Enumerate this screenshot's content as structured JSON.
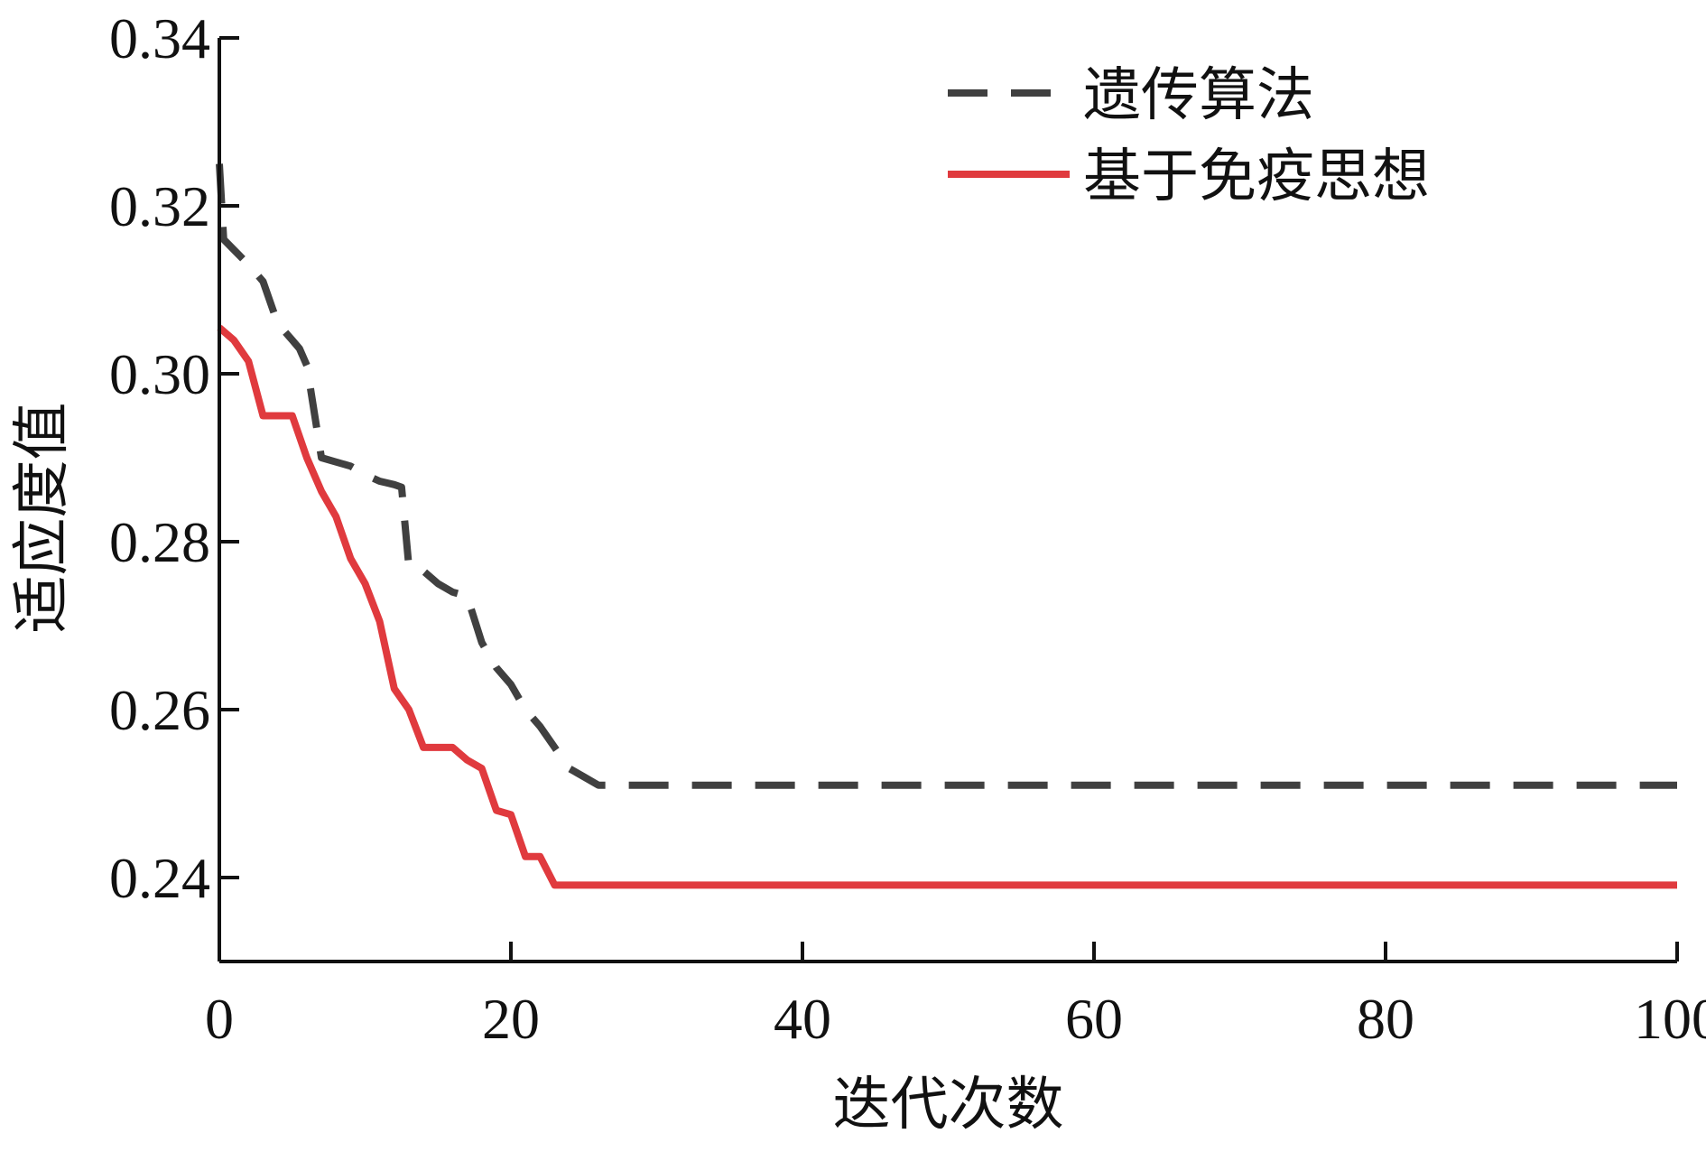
{
  "chart_data": {
    "type": "line",
    "xlabel": "迭代次数",
    "ylabel": "适应度值",
    "xlim": [
      0,
      100
    ],
    "ylim": [
      0.23,
      0.34
    ],
    "xticks": [
      0,
      20,
      40,
      60,
      80,
      100
    ],
    "xtick_labels": [
      "0",
      "20",
      "40",
      "60",
      "80",
      "100"
    ],
    "yticks": [
      0.24,
      0.26,
      0.28,
      0.3,
      0.32,
      0.34
    ],
    "ytick_labels": [
      "0.24",
      "0.26",
      "0.28",
      "0.30",
      "0.32",
      "0.34"
    ],
    "grid": false,
    "legend_position": "top-right",
    "series": [
      {
        "name": "遗传算法",
        "color": "#404040",
        "style": "dashed",
        "x": [
          0,
          0.3,
          2,
          3,
          4,
          4.5,
          5,
          5.5,
          6,
          7,
          8,
          9,
          10,
          11,
          11.5,
          12,
          12.5,
          13,
          14,
          15,
          16,
          17,
          18,
          19,
          20,
          21,
          22,
          23,
          24,
          25,
          26,
          27,
          30,
          40,
          50,
          60,
          70,
          80,
          90,
          100
        ],
        "y": [
          0.325,
          0.316,
          0.313,
          0.311,
          0.306,
          0.305,
          0.304,
          0.303,
          0.301,
          0.29,
          0.2895,
          0.289,
          0.288,
          0.2872,
          0.287,
          0.2868,
          0.2865,
          0.277,
          0.2765,
          0.275,
          0.274,
          0.2735,
          0.268,
          0.265,
          0.263,
          0.26,
          0.258,
          0.2555,
          0.253,
          0.252,
          0.251,
          0.251,
          0.251,
          0.251,
          0.251,
          0.251,
          0.251,
          0.251,
          0.251,
          0.251
        ]
      },
      {
        "name": "基于免疫思想",
        "color": "#e03a3e",
        "style": "solid",
        "x": [
          0,
          1,
          2,
          3,
          4,
          5,
          6,
          7,
          8,
          9,
          10,
          11,
          12,
          13,
          14,
          15,
          16,
          17,
          18,
          19,
          20,
          21,
          22,
          23,
          24,
          30,
          40,
          50,
          60,
          70,
          80,
          90,
          100
        ],
        "y": [
          0.3055,
          0.304,
          0.3015,
          0.295,
          0.295,
          0.295,
          0.29,
          0.286,
          0.283,
          0.278,
          0.275,
          0.2705,
          0.2625,
          0.26,
          0.2555,
          0.2555,
          0.2555,
          0.254,
          0.253,
          0.248,
          0.2475,
          0.2425,
          0.2425,
          0.2391,
          0.2391,
          0.2391,
          0.2391,
          0.2391,
          0.2391,
          0.2391,
          0.2391,
          0.2391,
          0.2391
        ]
      }
    ]
  }
}
